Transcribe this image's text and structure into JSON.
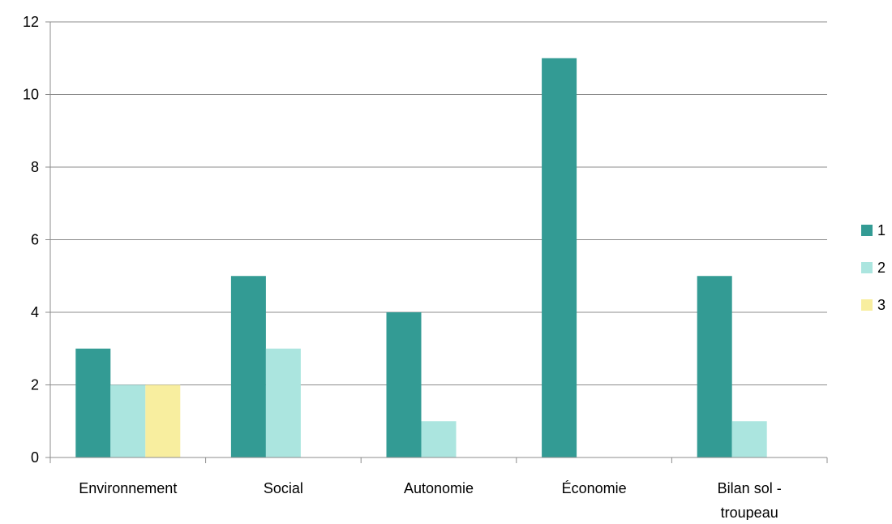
{
  "chart_data": {
    "type": "bar",
    "categories": [
      "Environnement",
      "Social",
      "Autonomie",
      "Économie",
      "Bilan sol - troupeau"
    ],
    "category_label_lines": [
      [
        "Environnement"
      ],
      [
        "Social"
      ],
      [
        "Autonomie"
      ],
      [
        "Économie"
      ],
      [
        "Bilan sol -",
        "troupeau"
      ]
    ],
    "series": [
      {
        "name": "1",
        "values": [
          3,
          5,
          4,
          11,
          5
        ],
        "color": "#339b94"
      },
      {
        "name": "2",
        "values": [
          2,
          3,
          1,
          0,
          1
        ],
        "color": "#abe5df"
      },
      {
        "name": "3",
        "values": [
          2,
          0,
          0,
          0,
          0
        ],
        "color": "#f8ee9f"
      }
    ],
    "ylim": [
      0,
      12
    ],
    "yticks": [
      0,
      2,
      4,
      6,
      8,
      10,
      12
    ],
    "grid": true,
    "legend": "right",
    "title": "",
    "xlabel": "",
    "ylabel": ""
  }
}
